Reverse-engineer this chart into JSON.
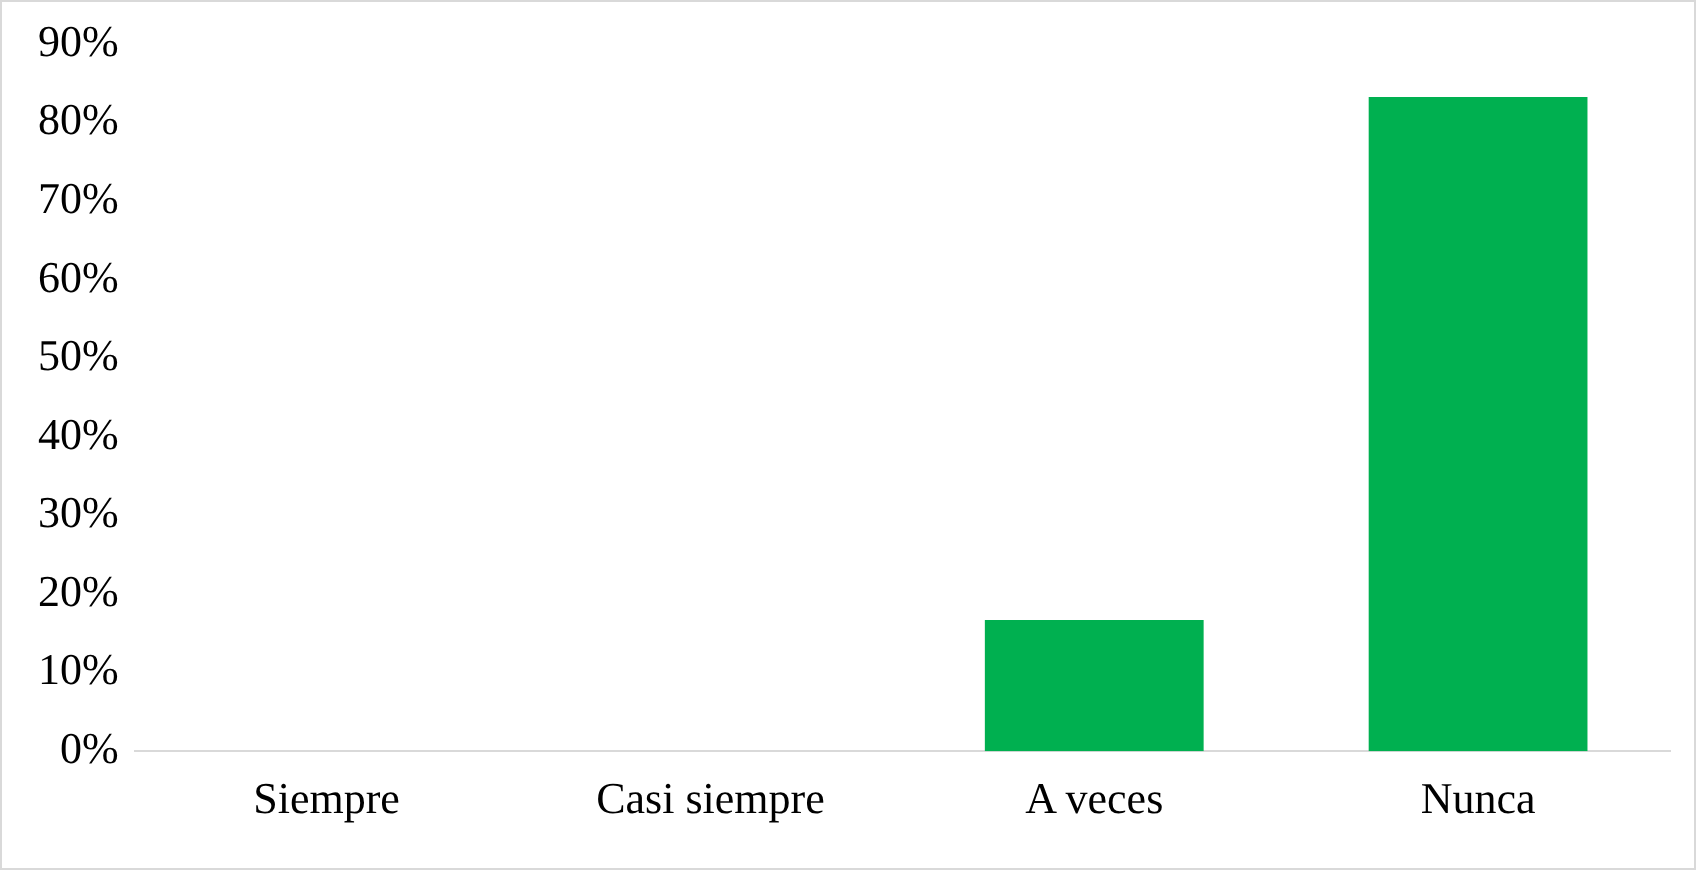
{
  "chart_data": {
    "type": "bar",
    "categories": [
      "Siempre",
      "Casi siempre",
      "A veces",
      "Nunca"
    ],
    "values": [
      0,
      0,
      16.7,
      83.3
    ],
    "color": "#00b050",
    "ylim": [
      0,
      90
    ],
    "yticks": [
      {
        "value": 0,
        "label": "0%"
      },
      {
        "value": 10,
        "label": "10%"
      },
      {
        "value": 20,
        "label": "20%"
      },
      {
        "value": 30,
        "label": "30%"
      },
      {
        "value": 40,
        "label": "40%"
      },
      {
        "value": 50,
        "label": "50%"
      },
      {
        "value": 60,
        "label": "60%"
      },
      {
        "value": 70,
        "label": "70%"
      },
      {
        "value": 80,
        "label": "80%"
      },
      {
        "value": 90,
        "label": "90%"
      }
    ],
    "grid": false,
    "legend": false
  }
}
